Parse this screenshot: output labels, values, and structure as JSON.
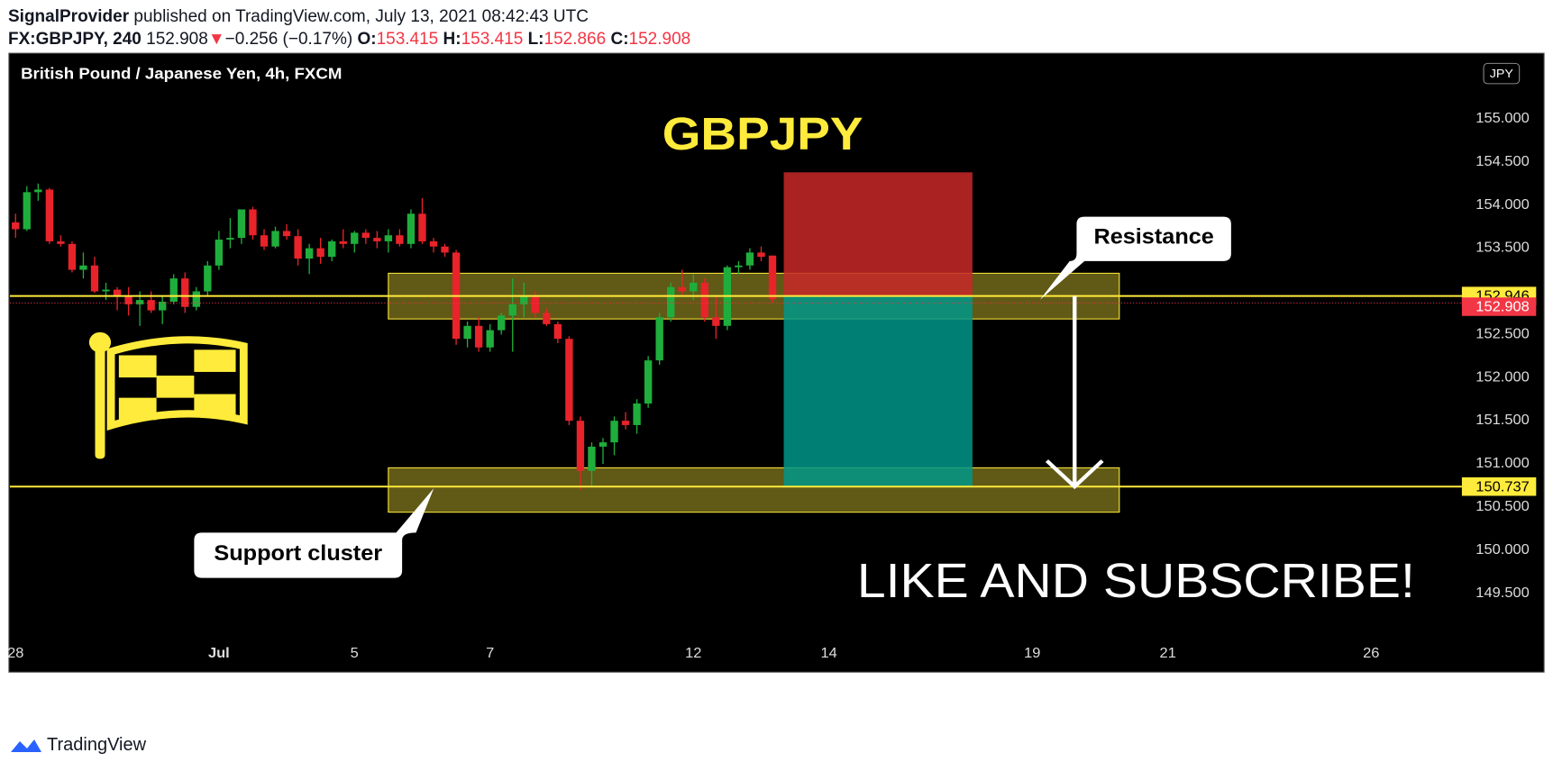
{
  "header": {
    "author": "SignalProvider",
    "published": " published on TradingView.com, July 13, 2021 08:42:43 UTC",
    "symbol": "FX:GBPJPY, 240",
    "change": "−0.256 (−0.17%)",
    "o": "O:",
    "h": "H:",
    "l": "L:",
    "c": "C:"
  },
  "chart_data": {
    "type": "candlestick",
    "title": "British Pound / Japanese Yen, 4h, FXCM",
    "currency": "JPY",
    "colors": {
      "up": "#1fae3c",
      "down": "#e8232a",
      "level": "#ffeb3b",
      "last": "#f23645"
    },
    "candles": [
      [
        153.8,
        153.9,
        153.62,
        153.72
      ],
      [
        153.72,
        154.22,
        153.7,
        154.15
      ],
      [
        154.15,
        154.25,
        154.05,
        154.18
      ],
      [
        154.18,
        154.2,
        153.55,
        153.58
      ],
      [
        153.58,
        153.65,
        153.52,
        153.55
      ],
      [
        153.55,
        153.58,
        153.22,
        153.25
      ],
      [
        153.25,
        153.45,
        153.15,
        153.3
      ],
      [
        153.3,
        153.4,
        152.98,
        153.0
      ],
      [
        153.0,
        153.1,
        152.9,
        153.02
      ],
      [
        153.02,
        153.05,
        152.78,
        152.95
      ],
      [
        152.95,
        153.05,
        152.72,
        152.85
      ],
      [
        152.85,
        153.0,
        152.6,
        152.9
      ],
      [
        152.9,
        153.0,
        152.75,
        152.78
      ],
      [
        152.78,
        152.95,
        152.62,
        152.88
      ],
      [
        152.88,
        153.2,
        152.85,
        153.15
      ],
      [
        153.15,
        153.22,
        152.75,
        152.82
      ],
      [
        152.82,
        153.05,
        152.78,
        153.0
      ],
      [
        153.0,
        153.35,
        152.95,
        153.3
      ],
      [
        153.3,
        153.7,
        153.25,
        153.6
      ],
      [
        153.6,
        153.85,
        153.5,
        153.62
      ],
      [
        153.62,
        153.95,
        153.55,
        153.95
      ],
      [
        153.95,
        153.98,
        153.6,
        153.65
      ],
      [
        153.65,
        153.72,
        153.48,
        153.52
      ],
      [
        153.52,
        153.75,
        153.5,
        153.7
      ],
      [
        153.7,
        153.78,
        153.6,
        153.64
      ],
      [
        153.64,
        153.72,
        153.3,
        153.38
      ],
      [
        153.38,
        153.55,
        153.2,
        153.5
      ],
      [
        153.5,
        153.62,
        153.32,
        153.4
      ],
      [
        153.4,
        153.6,
        153.35,
        153.58
      ],
      [
        153.58,
        153.72,
        153.5,
        153.55
      ],
      [
        153.55,
        153.7,
        153.45,
        153.68
      ],
      [
        153.68,
        153.72,
        153.55,
        153.62
      ],
      [
        153.62,
        153.7,
        153.5,
        153.58
      ],
      [
        153.58,
        153.72,
        153.45,
        153.65
      ],
      [
        153.65,
        153.72,
        153.52,
        153.55
      ],
      [
        153.55,
        153.95,
        153.5,
        153.9
      ],
      [
        153.9,
        154.08,
        153.55,
        153.58
      ],
      [
        153.58,
        153.62,
        153.45,
        153.52
      ],
      [
        153.52,
        153.55,
        153.4,
        153.45
      ],
      [
        153.45,
        153.48,
        152.38,
        152.45
      ],
      [
        152.45,
        152.65,
        152.35,
        152.6
      ],
      [
        152.6,
        152.7,
        152.3,
        152.35
      ],
      [
        152.35,
        152.62,
        152.3,
        152.55
      ],
      [
        152.55,
        152.75,
        152.5,
        152.72
      ],
      [
        152.72,
        153.15,
        152.3,
        152.85
      ],
      [
        152.85,
        153.1,
        152.7,
        152.95
      ],
      [
        152.95,
        153.0,
        152.7,
        152.75
      ],
      [
        152.75,
        152.8,
        152.6,
        152.62
      ],
      [
        152.62,
        152.65,
        152.4,
        152.45
      ],
      [
        152.45,
        152.48,
        151.45,
        151.5
      ],
      [
        151.5,
        151.55,
        150.7,
        150.92
      ],
      [
        150.92,
        151.25,
        150.75,
        151.2
      ],
      [
        151.2,
        151.3,
        151.0,
        151.25
      ],
      [
        151.25,
        151.55,
        151.1,
        151.5
      ],
      [
        151.5,
        151.6,
        151.4,
        151.45
      ],
      [
        151.45,
        151.75,
        151.35,
        151.7
      ],
      [
        151.7,
        152.25,
        151.65,
        152.2
      ],
      [
        152.2,
        152.75,
        152.15,
        152.7
      ],
      [
        152.7,
        153.1,
        152.65,
        153.05
      ],
      [
        153.05,
        153.25,
        152.95,
        153.0
      ],
      [
        153.0,
        153.2,
        152.9,
        153.1
      ],
      [
        153.1,
        153.15,
        152.65,
        152.7
      ],
      [
        152.7,
        152.95,
        152.45,
        152.6
      ],
      [
        152.6,
        153.3,
        152.55,
        153.28
      ],
      [
        153.28,
        153.35,
        153.2,
        153.3
      ],
      [
        153.3,
        153.5,
        153.25,
        153.45
      ],
      [
        153.45,
        153.52,
        153.35,
        153.4
      ],
      [
        153.415,
        153.415,
        152.866,
        152.908
      ]
    ],
    "xlim": [
      -0.5,
      127.5
    ],
    "ylim": [
      148.95,
      155.75
    ],
    "xticks": [
      {
        "value": 0,
        "label": "28"
      },
      {
        "value": 18,
        "label": "Jul"
      },
      {
        "value": 30,
        "label": "5"
      },
      {
        "value": 42,
        "label": "7"
      },
      {
        "value": 60,
        "label": "12"
      },
      {
        "value": 72,
        "label": "14"
      },
      {
        "value": 90,
        "label": "19"
      },
      {
        "value": 102,
        "label": "21"
      },
      {
        "value": 120,
        "label": "26"
      }
    ],
    "yticks": [
      {
        "value": 155,
        "label": "155.000"
      },
      {
        "value": 154.5,
        "label": "154.500"
      },
      {
        "value": 154,
        "label": "154.000"
      },
      {
        "value": 153.5,
        "label": "153.500"
      },
      {
        "value": 152.5,
        "label": "152.500"
      },
      {
        "value": 152,
        "label": "152.000"
      },
      {
        "value": 151.5,
        "label": "151.500"
      },
      {
        "value": 151,
        "label": "151.000"
      },
      {
        "value": 150.5,
        "label": "150.500"
      },
      {
        "value": 150,
        "label": "150.000"
      },
      {
        "value": 149.5,
        "label": "149.500"
      }
    ],
    "levels": [
      {
        "value": 152.946,
        "label": "152.946"
      },
      {
        "value": 150.737,
        "label": "150.737"
      }
    ],
    "zones": [
      {
        "x": [
          33,
          97.7
        ],
        "y": [
          152.68,
          153.21
        ]
      },
      {
        "x": [
          33,
          97.7
        ],
        "y": [
          150.44,
          150.955
        ]
      }
    ],
    "position": {
      "x": [
        68,
        84.7
      ],
      "entry": 152.946,
      "stop": 154.38,
      "target": 150.737
    },
    "annotations": [
      "GBPJPY",
      "LIKE AND SUBSCRIBE!"
    ],
    "callouts": [
      "Resistance",
      "Support cluster"
    ]
  },
  "footer": "TradingView"
}
